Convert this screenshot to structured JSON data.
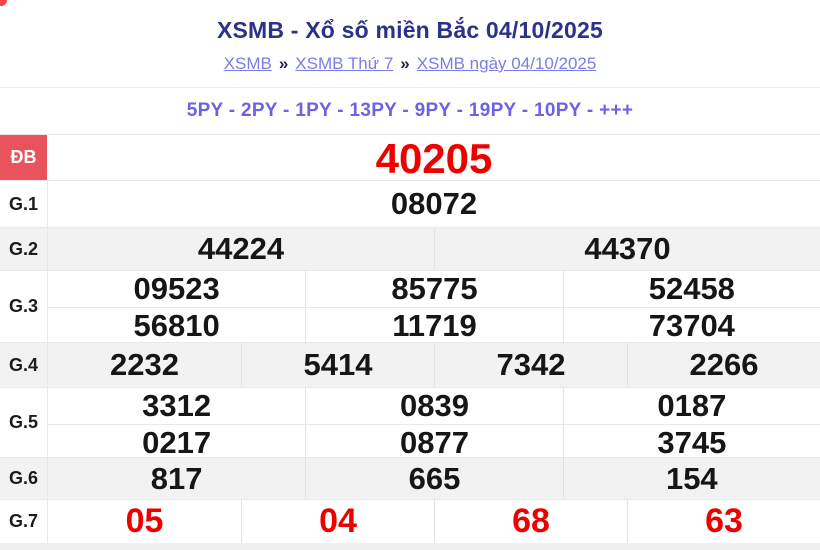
{
  "page": {
    "title": "XSMB - Xổ số miền Bắc 04/10/2025",
    "breadcrumb_separator": "»",
    "breadcrumb": [
      {
        "label": "XSMB"
      },
      {
        "label": "XSMB Thứ 7"
      },
      {
        "label": "XSMB ngày 04/10/2025"
      }
    ],
    "promo_line": "5PY - 2PY - 1PY - 13PY - 9PY - 19PY - 10PY - +++"
  },
  "results_table": {
    "rows": [
      {
        "label": "ĐB",
        "lines": [
          [
            "40205"
          ]
        ]
      },
      {
        "label": "G.1",
        "lines": [
          [
            "08072"
          ]
        ]
      },
      {
        "label": "G.2",
        "lines": [
          [
            "44224",
            "44370"
          ]
        ]
      },
      {
        "label": "G.3",
        "lines": [
          [
            "09523",
            "85775",
            "52458"
          ],
          [
            "56810",
            "11719",
            "73704"
          ]
        ]
      },
      {
        "label": "G.4",
        "lines": [
          [
            "2232",
            "5414",
            "7342",
            "2266"
          ]
        ]
      },
      {
        "label": "G.5",
        "lines": [
          [
            "3312",
            "0839",
            "0187"
          ],
          [
            "0217",
            "0877",
            "3745"
          ]
        ]
      },
      {
        "label": "G.6",
        "lines": [
          [
            "817",
            "665",
            "154"
          ]
        ]
      },
      {
        "label": "G.7",
        "lines": [
          [
            "05",
            "04",
            "68",
            "63"
          ]
        ]
      }
    ]
  },
  "colors": {
    "title": "#2b3287",
    "breadcrumb_link": "#7b7ce9",
    "promo": "#6f62e2",
    "special_label_bg": "#e8535e",
    "result_red": "#ee0000",
    "stripe_bg": "#f2f2f2"
  }
}
